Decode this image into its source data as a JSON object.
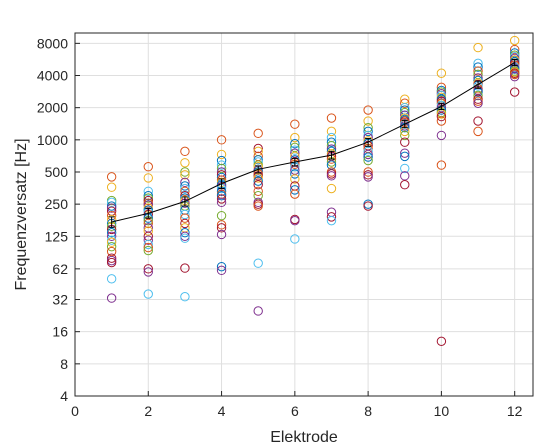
{
  "chart_data": {
    "type": "scatter",
    "xlabel": "Elektrode",
    "ylabel": "Frequenzversatz [Hz]",
    "x_ticks": [
      0,
      2,
      4,
      6,
      8,
      10,
      12
    ],
    "x_tick_labels": [
      "0",
      "2",
      "4",
      "6",
      "8",
      "10",
      "12"
    ],
    "xlim": [
      0,
      12.5
    ],
    "y_scale": "log2",
    "y_ticks": [
      4,
      8,
      16,
      32,
      62,
      125,
      250,
      500,
      1000,
      2000,
      4000,
      8000
    ],
    "y_tick_labels": [
      "4",
      "8",
      "16",
      "32",
      "62",
      "125",
      "250",
      "500",
      "1000",
      "2000",
      "4000",
      "8000"
    ],
    "ylim": [
      4,
      10000
    ],
    "grid": true,
    "colors": [
      "#0072BD",
      "#D95319",
      "#EDB120",
      "#7E2F8E",
      "#77AC30",
      "#4DBEEE",
      "#A2142F"
    ],
    "scatter_points": [
      [
        1,
        450,
        1
      ],
      [
        1,
        360,
        2
      ],
      [
        1,
        270,
        4
      ],
      [
        1,
        260,
        5
      ],
      [
        1,
        240,
        0
      ],
      [
        1,
        230,
        3
      ],
      [
        1,
        215,
        6
      ],
      [
        1,
        195,
        1
      ],
      [
        1,
        180,
        2
      ],
      [
        1,
        165,
        0
      ],
      [
        1,
        155,
        4
      ],
      [
        1,
        145,
        6
      ],
      [
        1,
        135,
        0
      ],
      [
        1,
        125,
        3
      ],
      [
        1,
        115,
        5
      ],
      [
        1,
        110,
        2
      ],
      [
        1,
        100,
        4
      ],
      [
        1,
        90,
        1
      ],
      [
        1,
        78,
        6
      ],
      [
        1,
        74,
        3
      ],
      [
        1,
        71,
        6
      ],
      [
        1,
        50,
        5
      ],
      [
        1,
        33,
        3
      ],
      [
        2,
        560,
        1
      ],
      [
        2,
        440,
        2
      ],
      [
        2,
        330,
        5
      ],
      [
        2,
        300,
        0
      ],
      [
        2,
        285,
        4
      ],
      [
        2,
        270,
        6
      ],
      [
        2,
        255,
        1
      ],
      [
        2,
        245,
        3
      ],
      [
        2,
        230,
        2
      ],
      [
        2,
        220,
        0
      ],
      [
        2,
        210,
        5
      ],
      [
        2,
        200,
        6
      ],
      [
        2,
        185,
        0
      ],
      [
        2,
        175,
        4
      ],
      [
        2,
        165,
        1
      ],
      [
        2,
        150,
        3
      ],
      [
        2,
        140,
        2
      ],
      [
        2,
        125,
        6
      ],
      [
        2,
        115,
        3
      ],
      [
        2,
        105,
        5
      ],
      [
        2,
        98,
        1
      ],
      [
        2,
        92,
        4
      ],
      [
        2,
        62,
        6
      ],
      [
        2,
        58,
        3
      ],
      [
        2,
        36,
        5
      ],
      [
        3,
        780,
        1
      ],
      [
        3,
        610,
        2
      ],
      [
        3,
        500,
        4
      ],
      [
        3,
        470,
        2
      ],
      [
        3,
        400,
        3
      ],
      [
        3,
        370,
        0
      ],
      [
        3,
        350,
        5
      ],
      [
        3,
        330,
        1
      ],
      [
        3,
        300,
        6
      ],
      [
        3,
        285,
        0
      ],
      [
        3,
        270,
        2
      ],
      [
        3,
        255,
        3
      ],
      [
        3,
        240,
        4
      ],
      [
        3,
        220,
        0
      ],
      [
        3,
        200,
        5
      ],
      [
        3,
        185,
        1
      ],
      [
        3,
        165,
        6
      ],
      [
        3,
        150,
        2
      ],
      [
        3,
        135,
        0
      ],
      [
        3,
        125,
        3
      ],
      [
        3,
        120,
        5
      ],
      [
        3,
        63,
        6
      ],
      [
        3,
        34,
        5
      ],
      [
        4,
        1000,
        1
      ],
      [
        4,
        730,
        2
      ],
      [
        4,
        640,
        0
      ],
      [
        4,
        580,
        5
      ],
      [
        4,
        540,
        4
      ],
      [
        4,
        500,
        3
      ],
      [
        4,
        470,
        6
      ],
      [
        4,
        445,
        0
      ],
      [
        4,
        420,
        1
      ],
      [
        4,
        400,
        2
      ],
      [
        4,
        380,
        0
      ],
      [
        4,
        365,
        3
      ],
      [
        4,
        350,
        5
      ],
      [
        4,
        330,
        0
      ],
      [
        4,
        310,
        1
      ],
      [
        4,
        300,
        0
      ],
      [
        4,
        280,
        6
      ],
      [
        4,
        260,
        3
      ],
      [
        4,
        195,
        4
      ],
      [
        4,
        160,
        1
      ],
      [
        4,
        150,
        6
      ],
      [
        4,
        130,
        3
      ],
      [
        4,
        65,
        0
      ],
      [
        4,
        60,
        3
      ],
      [
        5,
        1150,
        1
      ],
      [
        5,
        830,
        6
      ],
      [
        5,
        780,
        2
      ],
      [
        5,
        700,
        1
      ],
      [
        5,
        650,
        0
      ],
      [
        5,
        620,
        5
      ],
      [
        5,
        580,
        4
      ],
      [
        5,
        560,
        2
      ],
      [
        5,
        520,
        3
      ],
      [
        5,
        500,
        0
      ],
      [
        5,
        480,
        1
      ],
      [
        5,
        460,
        6
      ],
      [
        5,
        440,
        2
      ],
      [
        5,
        410,
        0
      ],
      [
        5,
        380,
        6
      ],
      [
        5,
        330,
        1
      ],
      [
        5,
        300,
        4
      ],
      [
        5,
        260,
        3
      ],
      [
        5,
        250,
        6
      ],
      [
        5,
        240,
        1
      ],
      [
        5,
        70,
        5
      ],
      [
        5,
        25,
        3
      ],
      [
        6,
        1400,
        1
      ],
      [
        6,
        1050,
        2
      ],
      [
        6,
        920,
        0
      ],
      [
        6,
        850,
        4
      ],
      [
        6,
        800,
        5
      ],
      [
        6,
        750,
        3
      ],
      [
        6,
        700,
        2
      ],
      [
        6,
        650,
        0
      ],
      [
        6,
        620,
        6
      ],
      [
        6,
        590,
        1
      ],
      [
        6,
        560,
        5
      ],
      [
        6,
        520,
        3
      ],
      [
        6,
        480,
        0
      ],
      [
        6,
        430,
        2
      ],
      [
        6,
        370,
        6
      ],
      [
        6,
        340,
        0
      ],
      [
        6,
        310,
        1
      ],
      [
        6,
        180,
        6
      ],
      [
        6,
        175,
        3
      ],
      [
        6,
        118,
        5
      ],
      [
        7,
        1600,
        1
      ],
      [
        7,
        1200,
        2
      ],
      [
        7,
        1050,
        5
      ],
      [
        7,
        950,
        0
      ],
      [
        7,
        880,
        4
      ],
      [
        7,
        820,
        3
      ],
      [
        7,
        780,
        0
      ],
      [
        7,
        740,
        2
      ],
      [
        7,
        700,
        6
      ],
      [
        7,
        660,
        1
      ],
      [
        7,
        620,
        4
      ],
      [
        7,
        580,
        0
      ],
      [
        7,
        500,
        1
      ],
      [
        7,
        480,
        6
      ],
      [
        7,
        460,
        3
      ],
      [
        7,
        350,
        2
      ],
      [
        7,
        210,
        3
      ],
      [
        7,
        190,
        6
      ],
      [
        7,
        175,
        5
      ],
      [
        8,
        1900,
        1
      ],
      [
        8,
        1500,
        2
      ],
      [
        8,
        1300,
        4
      ],
      [
        8,
        1200,
        0
      ],
      [
        8,
        1100,
        5
      ],
      [
        8,
        1050,
        3
      ],
      [
        8,
        980,
        2
      ],
      [
        8,
        930,
        0
      ],
      [
        8,
        880,
        6
      ],
      [
        8,
        830,
        1
      ],
      [
        8,
        780,
        5
      ],
      [
        8,
        730,
        3
      ],
      [
        8,
        690,
        0
      ],
      [
        8,
        640,
        4
      ],
      [
        8,
        500,
        1
      ],
      [
        8,
        470,
        6
      ],
      [
        8,
        450,
        3
      ],
      [
        8,
        250,
        0
      ],
      [
        8,
        240,
        6
      ],
      [
        9,
        2400,
        2
      ],
      [
        9,
        2200,
        1
      ],
      [
        9,
        2000,
        5
      ],
      [
        9,
        1900,
        0
      ],
      [
        9,
        1800,
        4
      ],
      [
        9,
        1700,
        3
      ],
      [
        9,
        1600,
        2
      ],
      [
        9,
        1550,
        0
      ],
      [
        9,
        1500,
        6
      ],
      [
        9,
        1450,
        1
      ],
      [
        9,
        1400,
        5
      ],
      [
        9,
        1350,
        3
      ],
      [
        9,
        1300,
        0
      ],
      [
        9,
        1200,
        2
      ],
      [
        9,
        1100,
        4
      ],
      [
        9,
        950,
        6
      ],
      [
        9,
        750,
        3
      ],
      [
        9,
        700,
        0
      ],
      [
        9,
        540,
        5
      ],
      [
        9,
        460,
        3
      ],
      [
        9,
        380,
        6
      ],
      [
        10,
        4200,
        2
      ],
      [
        10,
        3100,
        1
      ],
      [
        10,
        2900,
        0
      ],
      [
        10,
        2800,
        4
      ],
      [
        10,
        2700,
        3
      ],
      [
        10,
        2600,
        5
      ],
      [
        10,
        2500,
        2
      ],
      [
        10,
        2400,
        0
      ],
      [
        10,
        2300,
        6
      ],
      [
        10,
        2200,
        1
      ],
      [
        10,
        2100,
        5
      ],
      [
        10,
        2000,
        3
      ],
      [
        10,
        1900,
        0
      ],
      [
        10,
        1800,
        4
      ],
      [
        10,
        1750,
        2
      ],
      [
        10,
        1650,
        6
      ],
      [
        10,
        1500,
        1
      ],
      [
        10,
        1100,
        3
      ],
      [
        10,
        580,
        1
      ],
      [
        10,
        13,
        6
      ],
      [
        11,
        7300,
        2
      ],
      [
        11,
        5200,
        5
      ],
      [
        11,
        4800,
        0
      ],
      [
        11,
        4400,
        1
      ],
      [
        11,
        4100,
        4
      ],
      [
        11,
        3800,
        3
      ],
      [
        11,
        3600,
        0
      ],
      [
        11,
        3400,
        2
      ],
      [
        11,
        3300,
        6
      ],
      [
        11,
        3200,
        5
      ],
      [
        11,
        3000,
        1
      ],
      [
        11,
        2900,
        3
      ],
      [
        11,
        2800,
        0
      ],
      [
        11,
        2600,
        4
      ],
      [
        11,
        2400,
        6
      ],
      [
        11,
        2300,
        1
      ],
      [
        11,
        2200,
        3
      ],
      [
        11,
        1500,
        6
      ],
      [
        11,
        1200,
        1
      ],
      [
        12,
        8500,
        2
      ],
      [
        12,
        7000,
        1
      ],
      [
        12,
        6500,
        0
      ],
      [
        12,
        6200,
        4
      ],
      [
        12,
        6000,
        5
      ],
      [
        12,
        5800,
        3
      ],
      [
        12,
        5600,
        2
      ],
      [
        12,
        5400,
        0
      ],
      [
        12,
        5200,
        6
      ],
      [
        12,
        5000,
        1
      ],
      [
        12,
        4800,
        5
      ],
      [
        12,
        4700,
        3
      ],
      [
        12,
        4600,
        0
      ],
      [
        12,
        4400,
        4
      ],
      [
        12,
        4300,
        2
      ],
      [
        12,
        4200,
        6
      ],
      [
        12,
        4100,
        1
      ],
      [
        12,
        3900,
        3
      ],
      [
        12,
        2800,
        6
      ]
    ],
    "mean_line": {
      "x": [
        1,
        2,
        3,
        4,
        5,
        6,
        7,
        8,
        9,
        10,
        11,
        12
      ],
      "y": [
        170,
        205,
        265,
        390,
        530,
        620,
        720,
        950,
        1400,
        2050,
        3300,
        5300
      ],
      "err_low": [
        152,
        185,
        240,
        350,
        490,
        570,
        660,
        870,
        1300,
        1920,
        3050,
        4950
      ],
      "err_high": [
        190,
        228,
        292,
        430,
        570,
        670,
        780,
        1030,
        1520,
        2200,
        3550,
        5650
      ],
      "color": "#000000"
    }
  }
}
